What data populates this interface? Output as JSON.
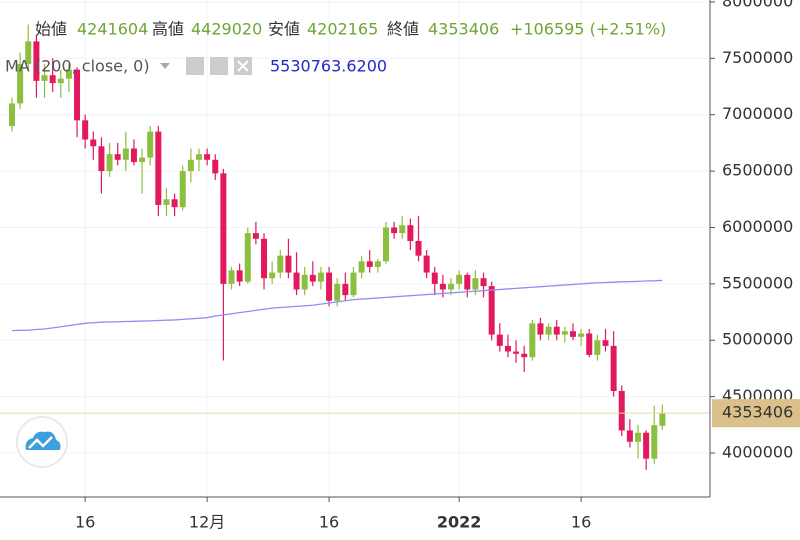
{
  "chart_data": {
    "type": "candlestick",
    "header": {
      "open": "始値",
      "high": "高値",
      "low": "安値",
      "close": "終値",
      "change": "+106595 (+2.51%)"
    },
    "categories": [
      null,
      null,
      null,
      null,
      null,
      null,
      null,
      null,
      null,
      "16",
      null,
      null,
      null,
      null,
      null,
      null,
      null,
      null,
      null,
      null,
      null,
      null,
      null,
      null,
      "12月",
      null,
      null,
      null,
      null,
      null,
      null,
      null,
      null,
      null,
      null,
      null,
      null,
      null,
      null,
      "16",
      null,
      null,
      null,
      null,
      null,
      null,
      null,
      null,
      null,
      null,
      null,
      null,
      null,
      null,
      null,
      "2022",
      null,
      null,
      null,
      null,
      null,
      null,
      null,
      null,
      null,
      null,
      null,
      null,
      null,
      null,
      "16",
      null,
      null,
      null,
      null,
      null,
      null,
      null,
      null,
      null,
      null
    ],
    "open": [
      6900000,
      7100000,
      7450000,
      7650000,
      7300000,
      7350000,
      7280000,
      7320000,
      7400000,
      6950000,
      6780000,
      6720000,
      6500000,
      6650000,
      6600000,
      6700000,
      6580000,
      6620000,
      6850000,
      6200000,
      6250000,
      6180000,
      6500000,
      6600000,
      6650000,
      6600000,
      6480000,
      5500000,
      5620000,
      5520000,
      5950000,
      5900000,
      5550000,
      5600000,
      5750000,
      5600000,
      5450000,
      5580000,
      5520000,
      5600000,
      5350000,
      5500000,
      5400000,
      5600000,
      5700000,
      5650000,
      5700000,
      6000000,
      5950000,
      6020000,
      5880000,
      5750000,
      5600000,
      5500000,
      5450000,
      5500000,
      5580000,
      5450000,
      5550000,
      5480000,
      5050000,
      4950000,
      4900000,
      4880000,
      4850000,
      5150000,
      5050000,
      5120000,
      5050000,
      5080000,
      5030000,
      5060000,
      4870000,
      5000000,
      4950000,
      4550000,
      4200000,
      4100000,
      4180000,
      3950000,
      4241604
    ],
    "high": [
      7150000,
      7550000,
      7800000,
      7700000,
      7450000,
      7500000,
      7400000,
      7450000,
      7420000,
      7000000,
      6850000,
      6800000,
      6750000,
      6750000,
      6850000,
      6780000,
      6700000,
      6900000,
      6900000,
      6350000,
      6300000,
      6550000,
      6700000,
      6700000,
      6700000,
      6650000,
      6520000,
      5650000,
      5680000,
      6000000,
      6050000,
      5950000,
      5700000,
      5800000,
      5900000,
      5780000,
      5650000,
      5700000,
      5650000,
      5650000,
      5550000,
      5600000,
      5650000,
      5750000,
      5800000,
      5720000,
      6050000,
      6050000,
      6100000,
      6080000,
      6100000,
      5800000,
      5650000,
      5580000,
      5550000,
      5620000,
      5600000,
      5620000,
      5600000,
      5520000,
      5150000,
      5050000,
      5000000,
      4950000,
      5180000,
      5200000,
      5150000,
      5180000,
      5120000,
      5150000,
      5100000,
      5100000,
      5050000,
      5100000,
      5080000,
      4600000,
      4300000,
      4250000,
      4200000,
      4420000,
      4429020
    ],
    "low": [
      6850000,
      7050000,
      7400000,
      7150000,
      7150000,
      7200000,
      7150000,
      7200000,
      6800000,
      6700000,
      6600000,
      6300000,
      6450000,
      6550000,
      6500000,
      6550000,
      6300000,
      6550000,
      6100000,
      6100000,
      6100000,
      6150000,
      6400000,
      6500000,
      6550000,
      6420000,
      4820000,
      5450000,
      5480000,
      5500000,
      5850000,
      5450000,
      5500000,
      5550000,
      5550000,
      5400000,
      5400000,
      5480000,
      5450000,
      5300000,
      5300000,
      5350000,
      5380000,
      5550000,
      5600000,
      5600000,
      5680000,
      5900000,
      5900000,
      5800000,
      5700000,
      5550000,
      5400000,
      5380000,
      5400000,
      5450000,
      5380000,
      5400000,
      5380000,
      5000000,
      4900000,
      4850000,
      4800000,
      4720000,
      4820000,
      5000000,
      5000000,
      5000000,
      4980000,
      5000000,
      4950000,
      4850000,
      4820000,
      4900000,
      4500000,
      4150000,
      4050000,
      3950000,
      3850000,
      3900000,
      4202165
    ],
    "close": [
      7100000,
      7450000,
      7650000,
      7300000,
      7350000,
      7280000,
      7320000,
      7400000,
      6950000,
      6780000,
      6720000,
      6500000,
      6650000,
      6600000,
      6700000,
      6580000,
      6620000,
      6850000,
      6200000,
      6250000,
      6180000,
      6500000,
      6600000,
      6650000,
      6600000,
      6480000,
      5500000,
      5620000,
      5520000,
      5950000,
      5900000,
      5550000,
      5600000,
      5750000,
      5600000,
      5450000,
      5580000,
      5520000,
      5600000,
      5350000,
      5500000,
      5400000,
      5600000,
      5700000,
      5650000,
      5700000,
      6000000,
      5950000,
      6020000,
      5880000,
      5750000,
      5600000,
      5500000,
      5450000,
      5500000,
      5580000,
      5450000,
      5550000,
      5480000,
      5050000,
      4950000,
      4900000,
      4880000,
      4850000,
      5150000,
      5050000,
      5120000,
      5050000,
      5080000,
      5030000,
      5060000,
      4870000,
      5000000,
      4950000,
      4550000,
      4200000,
      4100000,
      4180000,
      3950000,
      4246811,
      4353406
    ],
    "up_color": "#8cbf3f",
    "down_color": "#e2195d",
    "ma": {
      "name": "MA (200, close, 0)",
      "color": "#8f8ff0",
      "value_label": "5530763.6200",
      "values": [
        5085000,
        5088000,
        5090000,
        5095000,
        5100000,
        5110000,
        5120000,
        5130000,
        5140000,
        5150000,
        5155000,
        5160000,
        5162000,
        5164000,
        5166000,
        5168000,
        5170000,
        5172000,
        5175000,
        5178000,
        5180000,
        5185000,
        5190000,
        5195000,
        5200000,
        5215000,
        5225000,
        5235000,
        5245000,
        5255000,
        5265000,
        5275000,
        5285000,
        5290000,
        5295000,
        5300000,
        5305000,
        5310000,
        5320000,
        5330000,
        5340000,
        5350000,
        5360000,
        5365000,
        5370000,
        5375000,
        5380000,
        5385000,
        5390000,
        5395000,
        5400000,
        5405000,
        5410000,
        5415000,
        5420000,
        5425000,
        5430000,
        5435000,
        5440000,
        5445000,
        5450000,
        5455000,
        5460000,
        5465000,
        5470000,
        5475000,
        5480000,
        5485000,
        5490000,
        5495000,
        5500000,
        5505000,
        5510000,
        5512000,
        5515000,
        5518000,
        5520000,
        5522000,
        5525000,
        5527000,
        5530763.62
      ]
    },
    "ylim": [
      3610000,
      8017000
    ],
    "yticks": [
      4000000,
      4500000,
      5000000,
      5500000,
      6000000,
      6500000,
      7000000,
      7500000,
      8000000
    ],
    "grid": true
  }
}
